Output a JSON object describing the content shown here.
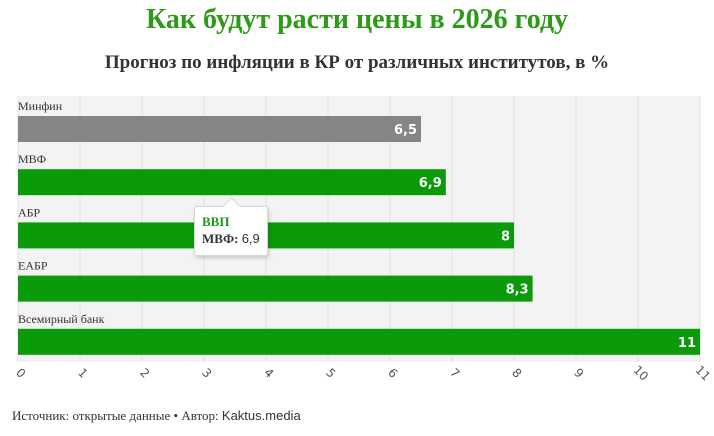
{
  "title": "Как будут расти цены в 2026 году",
  "subtitle": "Прогноз по инфляции в КР от различных институтов, в %",
  "chart_data": {
    "type": "bar",
    "orientation": "horizontal",
    "categories": [
      "Минфин",
      "МВФ",
      "АБР",
      "ЕАБР",
      "Всемирный банк"
    ],
    "values": [
      6.5,
      6.9,
      8,
      8.3,
      11
    ],
    "value_labels": [
      "6,5",
      "6,9",
      "8",
      "8,3",
      "11"
    ],
    "colors": [
      "#858585",
      "#0a9a0a",
      "#0a9a0a",
      "#0a9a0a",
      "#0a9a0a"
    ],
    "xlim": [
      0,
      11
    ],
    "xticks": [
      "0",
      "1",
      "2",
      "3",
      "4",
      "5",
      "6",
      "7",
      "8",
      "9",
      "10",
      "11"
    ],
    "grid": true,
    "background": "#f3f3f3"
  },
  "tooltip": {
    "title": "ВВП",
    "series_label": "МВФ:",
    "value": "6,9"
  },
  "footer": {
    "source_label": "Источник: открытые данные",
    "separator": " • ",
    "author_label": "Автор: ",
    "author": "Kaktus.media"
  }
}
